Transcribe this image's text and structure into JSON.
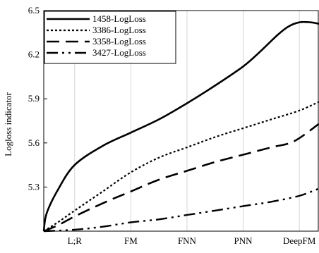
{
  "chart_data": {
    "type": "line",
    "title": "",
    "xlabel": "",
    "ylabel": "Logloss indicator",
    "categories": [
      "L;R",
      "FM",
      "FNN",
      "PNN",
      "DeepFM"
    ],
    "ylim": [
      5.0,
      6.5
    ],
    "yticks": [
      5.3,
      5.6,
      5.9,
      6.2,
      6.5
    ],
    "ytick_labels": [
      "5.3",
      "5.6",
      "5.9",
      "6.2",
      "6.5"
    ],
    "grid": "vertical",
    "legend_position": "top-left",
    "series": [
      {
        "name": "1458-LogLoss",
        "style": "solid",
        "x": [
          -0.55,
          -0.5,
          -0.3,
          0,
          0.5,
          1,
          1.5,
          2,
          2.5,
          3,
          3.3,
          3.6,
          3.8,
          4,
          4.2,
          4.35
        ],
        "y": [
          5.0,
          5.12,
          5.28,
          5.45,
          5.58,
          5.67,
          5.76,
          5.87,
          5.99,
          6.12,
          6.22,
          6.33,
          6.39,
          6.42,
          6.42,
          6.41
        ]
      },
      {
        "name": "3386-LogLoss",
        "style": "dotted",
        "x": [
          -0.55,
          -0.3,
          0,
          0.5,
          1,
          1.5,
          2,
          2.5,
          3,
          3.5,
          4,
          4.35
        ],
        "y": [
          5.0,
          5.06,
          5.14,
          5.27,
          5.4,
          5.5,
          5.57,
          5.64,
          5.7,
          5.76,
          5.82,
          5.88
        ]
      },
      {
        "name": "3358-LogLoss",
        "style": "dashed",
        "x": [
          -0.55,
          -0.3,
          0,
          0.5,
          1,
          1.5,
          2,
          2.5,
          3,
          3.5,
          3.9,
          4.35
        ],
        "y": [
          5.0,
          5.04,
          5.1,
          5.19,
          5.27,
          5.35,
          5.41,
          5.47,
          5.52,
          5.57,
          5.61,
          5.73
        ]
      },
      {
        "name": "3427-LogLoss",
        "style": "dash-dot-dot",
        "x": [
          -0.55,
          0,
          0.5,
          1,
          1.5,
          2,
          2.5,
          3,
          3.5,
          4,
          4.35
        ],
        "y": [
          5.0,
          5.01,
          5.03,
          5.06,
          5.08,
          5.11,
          5.14,
          5.17,
          5.2,
          5.24,
          5.29
        ]
      }
    ]
  }
}
